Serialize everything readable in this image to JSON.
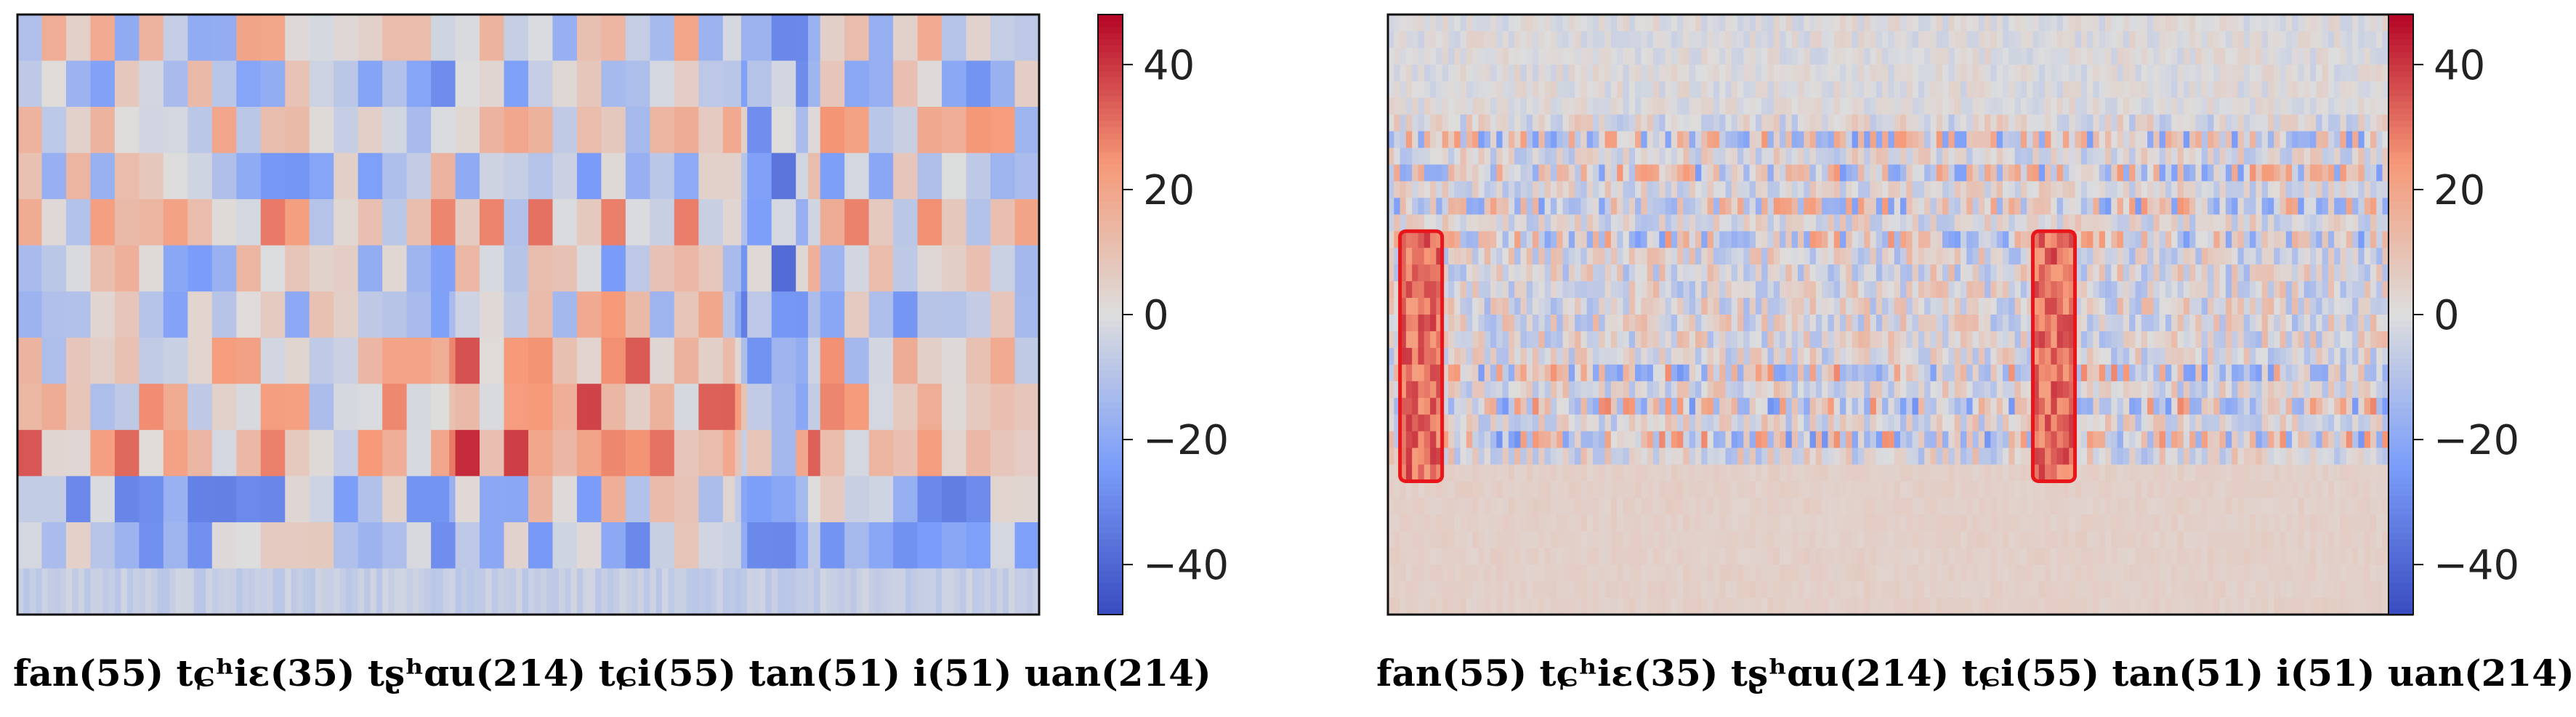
{
  "chart_data": [
    {
      "type": "heatmap",
      "xlabel": "fan(55) tɕʰiɛ(35) tʂʰɑu(214) tɕi(55) tan(51) i(51) uan(214)",
      "colorbar": {
        "range": [
          -48,
          48
        ],
        "ticks": [
          40,
          20,
          0,
          -20,
          -40
        ],
        "tick_labels": [
          "40",
          "20",
          "0",
          "−20",
          "−40"
        ],
        "colormap": "coolwarm"
      },
      "rows": 13,
      "columns": 168,
      "highlight_boxes": []
    },
    {
      "type": "heatmap",
      "xlabel": "fan(55) tɕʰiɛ(35) tʂʰɑu(214) tɕi(55) tan(51) i(51) uan(214)",
      "colorbar": {
        "range": [
          -48,
          48
        ],
        "ticks": [
          40,
          20,
          0,
          -20,
          -40
        ],
        "tick_labels": [
          "40",
          "20",
          "0",
          "−20",
          "−40"
        ],
        "colormap": "coolwarm"
      },
      "rows": 36,
      "columns": 170,
      "highlight_boxes": [
        {
          "column_range": [
            2,
            8
          ],
          "row_range": [
            13,
            27
          ],
          "color": "#e8151b"
        },
        {
          "column_range": [
            107,
            113
          ],
          "row_range": [
            13,
            27
          ],
          "color": "#e8151b"
        }
      ]
    }
  ]
}
